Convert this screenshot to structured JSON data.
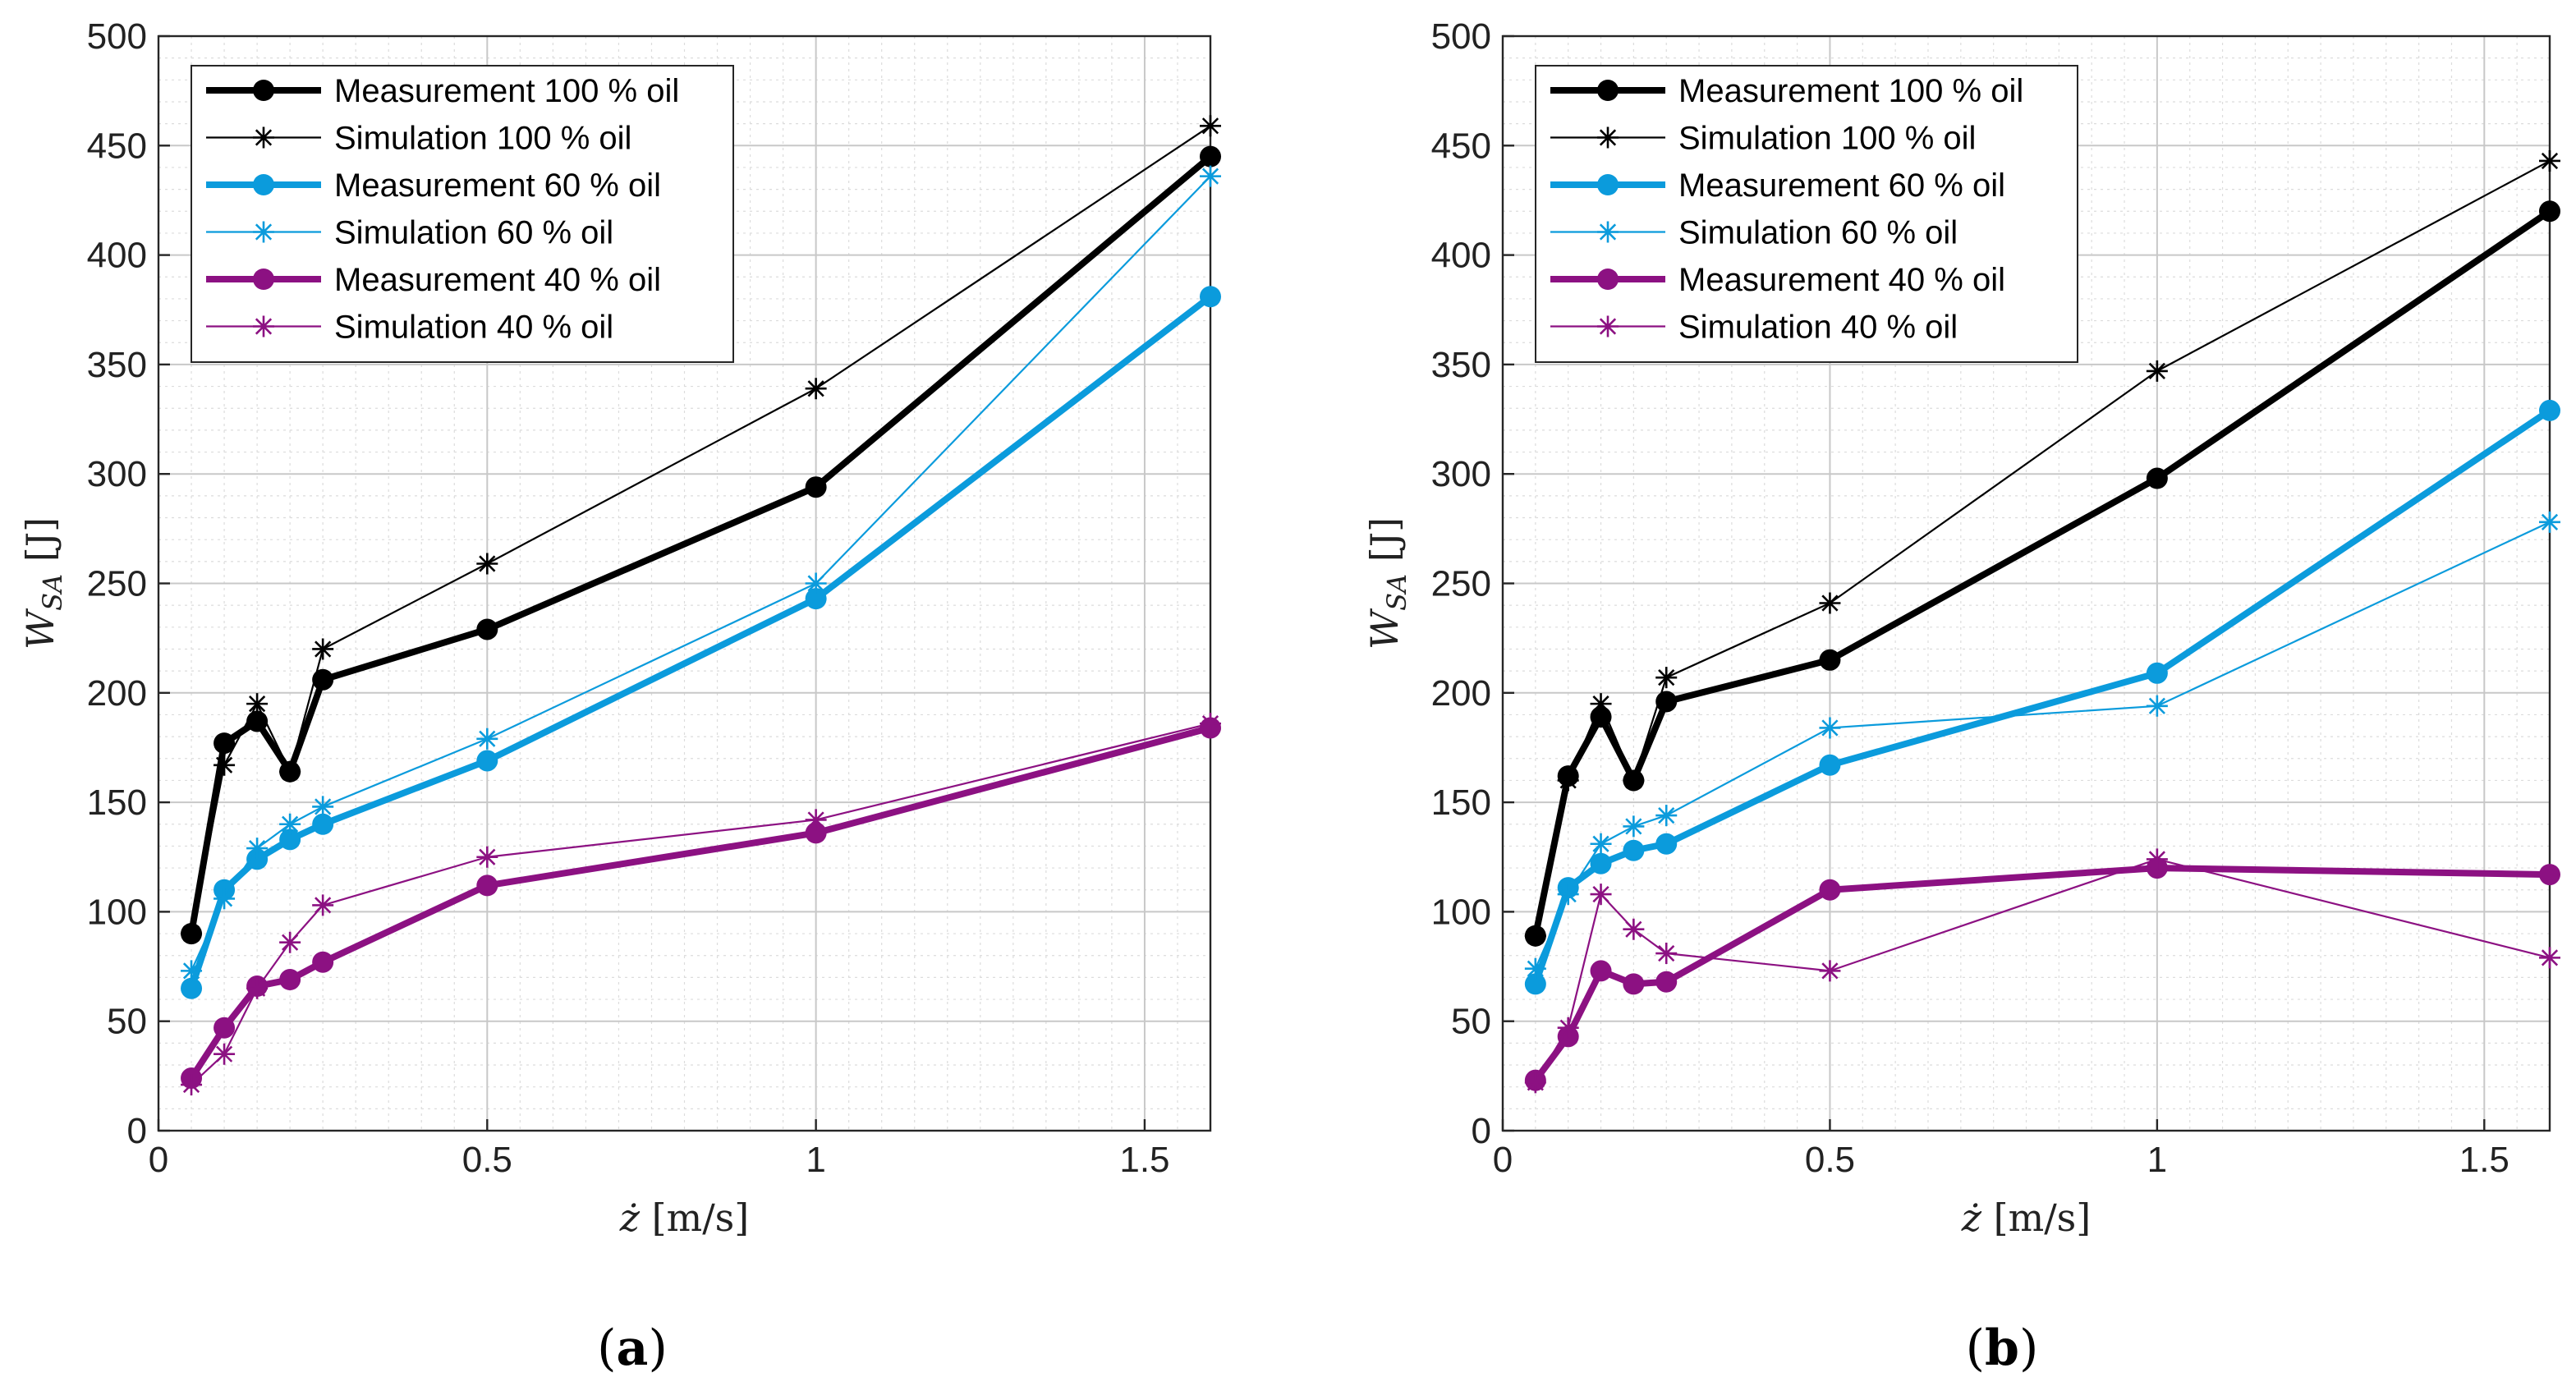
{
  "figure": {
    "colors": {
      "black": "#000000",
      "blue": "#0b9bdc",
      "purple": "#8c1182"
    }
  },
  "chart_data": [
    {
      "type": "line",
      "panel_label": "a",
      "xlabel": "ż [m/s]",
      "ylabel": "W_SA [J]",
      "ylabel_main": "W",
      "ylabel_sub": "SA",
      "ylabel_unit": "[J]",
      "xlabel_var": "ż",
      "xlabel_unit": "[m/s]",
      "xlim": [
        0,
        1.6
      ],
      "ylim": [
        0,
        500
      ],
      "xticks": [
        0,
        0.5,
        1,
        1.5
      ],
      "xtick_labels": [
        "0",
        "0.5",
        "1",
        "1.5"
      ],
      "yticks": [
        0,
        50,
        100,
        150,
        200,
        250,
        300,
        350,
        400,
        450,
        500
      ],
      "ytick_labels": [
        "0",
        "50",
        "100",
        "150",
        "200",
        "250",
        "300",
        "350",
        "400",
        "450",
        "500"
      ],
      "grid": true,
      "legend_position": "top-left",
      "x": [
        0.05,
        0.1,
        0.15,
        0.2,
        0.25,
        0.5,
        1.0,
        1.6
      ],
      "series": [
        {
          "name": "Measurement 100 % oil",
          "color": "#000000",
          "marker": "circle",
          "style": "thick",
          "values": [
            90,
            177,
            187,
            164,
            206,
            229,
            294,
            445
          ]
        },
        {
          "name": "Simulation 100 % oil",
          "color": "#000000",
          "marker": "star",
          "style": "thin",
          "values": [
            90,
            167,
            195,
            164,
            220,
            259,
            339,
            459
          ]
        },
        {
          "name": "Measurement 60 % oil",
          "color": "#0b9bdc",
          "marker": "circle",
          "style": "thick",
          "values": [
            65,
            110,
            124,
            133,
            140,
            169,
            243,
            381
          ]
        },
        {
          "name": "Simulation 60 % oil",
          "color": "#0b9bdc",
          "marker": "star",
          "style": "thin",
          "values": [
            73,
            106,
            129,
            140,
            148,
            179,
            250,
            436
          ]
        },
        {
          "name": "Measurement 40 % oil",
          "color": "#8c1182",
          "marker": "circle",
          "style": "thick",
          "values": [
            24,
            47,
            66,
            69,
            77,
            112,
            136,
            184
          ]
        },
        {
          "name": "Simulation 40 % oil",
          "color": "#8c1182",
          "marker": "star",
          "style": "thin",
          "values": [
            21,
            35,
            65,
            86,
            103,
            125,
            142,
            186
          ]
        }
      ]
    },
    {
      "type": "line",
      "panel_label": "b",
      "xlabel": "ż [m/s]",
      "ylabel": "W_SA [J]",
      "ylabel_main": "W",
      "ylabel_sub": "SA",
      "ylabel_unit": "[J]",
      "xlabel_var": "ż",
      "xlabel_unit": "[m/s]",
      "xlim": [
        0,
        1.6
      ],
      "ylim": [
        0,
        500
      ],
      "xticks": [
        0,
        0.5,
        1,
        1.5
      ],
      "xtick_labels": [
        "0",
        "0.5",
        "1",
        "1.5"
      ],
      "yticks": [
        0,
        50,
        100,
        150,
        200,
        250,
        300,
        350,
        400,
        450,
        500
      ],
      "ytick_labels": [
        "0",
        "50",
        "100",
        "150",
        "200",
        "250",
        "300",
        "350",
        "400",
        "450",
        "500"
      ],
      "grid": true,
      "legend_position": "top-left",
      "x": [
        0.05,
        0.1,
        0.15,
        0.2,
        0.25,
        0.5,
        1.0,
        1.6
      ],
      "series": [
        {
          "name": "Measurement 100 % oil",
          "color": "#000000",
          "marker": "circle",
          "style": "thick",
          "values": [
            89,
            162,
            189,
            160,
            196,
            215,
            298,
            420
          ]
        },
        {
          "name": "Simulation 100 % oil",
          "color": "#000000",
          "marker": "star",
          "style": "thin",
          "values": [
            89,
            160,
            195,
            160,
            207,
            241,
            347,
            443
          ]
        },
        {
          "name": "Measurement 60 % oil",
          "color": "#0b9bdc",
          "marker": "circle",
          "style": "thick",
          "values": [
            67,
            111,
            122,
            128,
            131,
            167,
            209,
            329
          ]
        },
        {
          "name": "Simulation 60 % oil",
          "color": "#0b9bdc",
          "marker": "star",
          "style": "thin",
          "values": [
            74,
            108,
            131,
            139,
            144,
            184,
            194,
            278
          ]
        },
        {
          "name": "Measurement 40 % oil",
          "color": "#8c1182",
          "marker": "circle",
          "style": "thick",
          "values": [
            23,
            43,
            73,
            67,
            68,
            110,
            120,
            117
          ]
        },
        {
          "name": "Simulation 40 % oil",
          "color": "#8c1182",
          "marker": "star",
          "style": "thin",
          "values": [
            22,
            47,
            108,
            92,
            81,
            73,
            124,
            79
          ]
        }
      ]
    }
  ]
}
